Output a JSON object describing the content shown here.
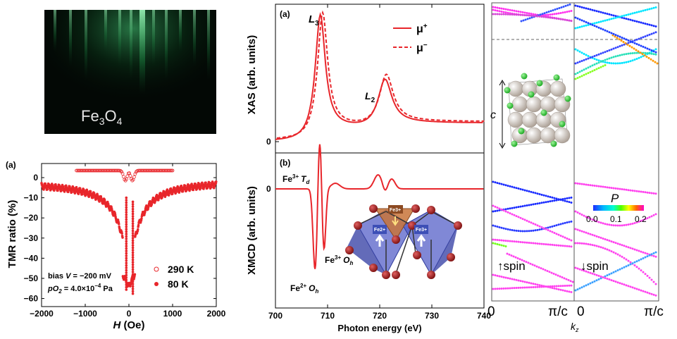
{
  "rheed": {
    "label": "Fe3O4",
    "label_main": "Fe",
    "sub1": "3",
    "mid": "O",
    "sub2": "4"
  },
  "tmr": {
    "panel": "(a)",
    "ylabel": "TMR ratio (%)",
    "xlabel": "H (Oe)",
    "xlabel_h": "H",
    "xlabel_unit": " (Oe)",
    "xticks": [
      "-2000",
      "-1000",
      "0",
      "1000",
      "2000"
    ],
    "yticks": [
      "0",
      "-10",
      "-20",
      "-30",
      "-40",
      "-50",
      "-60"
    ],
    "bias": "bias V = −200 mV",
    "bias_a": "bias ",
    "bias_v": "V",
    "bias_b": " = −200 mV",
    "po2": "pO2 = 4.0×10−4 Pa",
    "po2_p": "pO",
    "po2_sub": "2",
    "po2_b": " = 4.0×10",
    "po2_exp": "−4",
    "po2_c": " Pa",
    "legend": [
      "290 K",
      "80 K"
    ],
    "colors": {
      "red": "#e8262b"
    }
  },
  "xas": {
    "panel": "(a)",
    "ylabel": "XAS (arb. units)",
    "zero": "0",
    "L3": "L",
    "L3sub": "3",
    "L2": "L",
    "L2sub": "2",
    "legend": [
      "μ+",
      "μ−"
    ],
    "legend_mu": "μ",
    "legend_plus": "+",
    "legend_minus": "−"
  },
  "xmcd": {
    "panel": "(b)",
    "ylabel": "XMCD (arb. units)",
    "zero": "0",
    "xlabel": "Photon energy (eV)",
    "xticks": [
      "700",
      "710",
      "720",
      "730",
      "740"
    ],
    "fe3td_a": "Fe",
    "fe3td_sup": "3+",
    "td": "T",
    "td_sub": "d",
    "fe3oh_a": "Fe",
    "fe3oh_sup": "3+",
    "oh": "O",
    "oh_sub": "h",
    "fe2oh_a": "Fe",
    "fe2oh_sup": "2+",
    "oh2": "O",
    "oh2_sub": "h",
    "inset_labels": [
      "Fe3+",
      "Fe2+",
      "Fe3+"
    ]
  },
  "bands": {
    "c_label": "c",
    "p_label": "P",
    "p_ticks": [
      "0.0",
      "0.1",
      "0.2"
    ],
    "up": "↑spin",
    "down": "↓spin",
    "xticks": [
      "0",
      "π/c",
      "0",
      "π/c"
    ],
    "kz": "k",
    "kz_sub": "z"
  }
}
